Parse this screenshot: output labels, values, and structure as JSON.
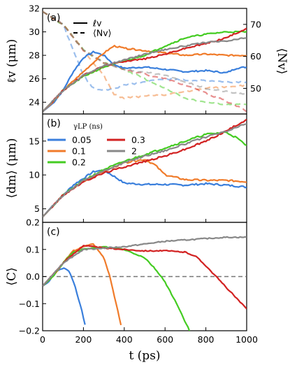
{
  "chart_data": [
    {
      "panel": "(a)",
      "type": "line",
      "xlim": [
        0,
        1000
      ],
      "ylim": [
        23,
        32
      ],
      "y2lim": [
        42,
        75
      ],
      "yticks": [
        24,
        26,
        28,
        30,
        32
      ],
      "y2ticks": [
        50,
        60,
        70
      ],
      "ylabel": "ℓv (μm)",
      "y2label": "⟨Nv⟩",
      "legend": {
        "position": "top-left",
        "entries": [
          {
            "label": "ℓv",
            "style": "solid"
          },
          {
            "label": "⟨Nv⟩",
            "style": "dashed"
          }
        ]
      },
      "series": [
        {
          "gamma": "0.05",
          "color": "#3a7fdc",
          "x": [
            0,
            50,
            100,
            150,
            200,
            250,
            300,
            350,
            400,
            500,
            600,
            700,
            800,
            900,
            950,
            1000
          ],
          "y": [
            23.2,
            23.9,
            25.0,
            26.6,
            27.8,
            28.3,
            28.0,
            27.2,
            26.9,
            27.0,
            26.8,
            26.6,
            26.7,
            26.5,
            26.9,
            27.0
          ],
          "n_x": [
            0,
            100,
            200,
            250,
            300,
            350,
            400,
            500,
            600,
            700,
            800,
            900,
            1000
          ],
          "n": [
            74,
            70,
            54,
            50,
            49.5,
            50,
            51,
            52,
            53,
            52.5,
            52.5,
            52,
            52
          ]
        },
        {
          "gamma": "0.1",
          "color": "#f07b2a",
          "x": [
            0,
            50,
            100,
            150,
            200,
            250,
            300,
            350,
            400,
            500,
            600,
            700,
            800,
            900,
            1000
          ],
          "y": [
            23.2,
            24.0,
            25.0,
            25.8,
            26.6,
            27.4,
            28.2,
            28.8,
            28.6,
            28.4,
            28.2,
            28.0,
            28.1,
            28.0,
            28.0
          ],
          "n_x": [
            0,
            100,
            200,
            300,
            350,
            400,
            500,
            600,
            700,
            800,
            900,
            1000
          ],
          "n": [
            74,
            70,
            62,
            54,
            48,
            47,
            47.5,
            48,
            49,
            50,
            50.5,
            51
          ]
        },
        {
          "gamma": "0.2",
          "color": "#44cc22",
          "x": [
            0,
            100,
            200,
            300,
            400,
            500,
            600,
            700,
            800,
            900,
            1000
          ],
          "y": [
            23.2,
            25.0,
            26.2,
            27.0,
            27.5,
            28.0,
            28.8,
            29.5,
            29.8,
            30.0,
            30.0
          ],
          "n_x": [
            0,
            100,
            200,
            300,
            400,
            500,
            600,
            700,
            800,
            900,
            1000
          ],
          "n": [
            74,
            70,
            62,
            58,
            56,
            53,
            50,
            47,
            45.5,
            45,
            45
          ]
        },
        {
          "gamma": "0.3",
          "color": "#d22222",
          "x": [
            0,
            100,
            200,
            300,
            400,
            500,
            600,
            700,
            800,
            900,
            1000
          ],
          "y": [
            23.2,
            25.0,
            26.3,
            27.1,
            27.5,
            27.7,
            28.1,
            28.6,
            29.0,
            29.5,
            30.3
          ],
          "n_x": [
            0,
            100,
            200,
            300,
            400,
            500,
            600,
            700,
            800,
            900,
            1000
          ],
          "n": [
            74,
            70,
            62,
            58,
            56,
            54.5,
            53,
            51,
            48.5,
            46,
            43
          ]
        },
        {
          "gamma": "2",
          "color": "#888888",
          "x": [
            0,
            100,
            200,
            300,
            400,
            500,
            600,
            700,
            800,
            900,
            1000
          ],
          "y": [
            23.2,
            25.0,
            26.3,
            27.1,
            27.6,
            28.1,
            28.5,
            28.8,
            29.1,
            29.2,
            29.5
          ],
          "n_x": [
            0,
            100,
            200,
            300,
            400,
            500,
            600,
            700,
            800,
            900,
            1000
          ],
          "n": [
            74,
            70,
            62,
            58,
            56,
            55,
            54,
            52,
            50,
            49,
            48
          ]
        }
      ]
    },
    {
      "panel": "(b)",
      "type": "line",
      "xlim": [
        0,
        1000
      ],
      "ylim": [
        3,
        19
      ],
      "yticks": [
        5,
        10,
        15
      ],
      "ylabel": "⟨dm⟩ (μm)",
      "legend": {
        "title": "γLP (ns)",
        "position": "top-left",
        "entries": [
          "0.05",
          "0.1",
          "0.2",
          "0.3",
          "2"
        ]
      },
      "series": [
        {
          "gamma": "0.05",
          "color": "#3a7fdc",
          "x": [
            0,
            50,
            100,
            150,
            200,
            250,
            300,
            350,
            400,
            500,
            600,
            700,
            800,
            900,
            1000
          ],
          "y": [
            3.8,
            5.5,
            7.0,
            8.5,
            9.5,
            10.5,
            10.7,
            9.8,
            8.8,
            8.6,
            8.6,
            8.5,
            8.7,
            8.5,
            8.2
          ],
          "seed": 1
        },
        {
          "gamma": "0.1",
          "color": "#f07b2a",
          "x": [
            0,
            100,
            200,
            300,
            400,
            500,
            550,
            600,
            700,
            800,
            900,
            1000
          ],
          "y": [
            3.8,
            7.0,
            9.0,
            10.5,
            11.8,
            12.3,
            11.5,
            10.0,
            9.3,
            9.2,
            9.2,
            9.0
          ],
          "seed": 2
        },
        {
          "gamma": "0.2",
          "color": "#44cc22",
          "x": [
            0,
            100,
            200,
            300,
            400,
            500,
            600,
            700,
            800,
            900,
            950,
            1000
          ],
          "y": [
            3.8,
            7.0,
            9.2,
            10.8,
            12.0,
            13.0,
            14.0,
            15.0,
            16.0,
            16.3,
            15.5,
            14.3
          ],
          "seed": 3
        },
        {
          "gamma": "0.3",
          "color": "#d22222",
          "x": [
            0,
            100,
            200,
            300,
            400,
            500,
            600,
            700,
            800,
            900,
            1000
          ],
          "y": [
            3.8,
            7.0,
            9.0,
            10.3,
            11.2,
            12.0,
            12.8,
            13.8,
            15.0,
            16.5,
            18.2
          ],
          "seed": 4
        },
        {
          "gamma": "2",
          "color": "#888888",
          "x": [
            0,
            100,
            200,
            300,
            400,
            500,
            600,
            700,
            800,
            900,
            1000
          ],
          "y": [
            3.8,
            7.0,
            9.2,
            10.6,
            11.8,
            12.8,
            13.6,
            14.6,
            15.6,
            16.4,
            17.6
          ],
          "seed": 5
        }
      ]
    },
    {
      "panel": "(c)",
      "type": "line",
      "xlim": [
        0,
        1000
      ],
      "ylim": [
        -0.2,
        0.2
      ],
      "yticks": [
        -0.2,
        -0.1,
        0.0,
        0.1,
        0.2
      ],
      "ytick_labels": [
        "−0.2",
        "−0.1",
        "0.0",
        "0.1",
        "0.2"
      ],
      "ylabel": "⟨C⟩",
      "xlabel": "t (ps)",
      "xticks": [
        0,
        200,
        400,
        600,
        800,
        1000
      ],
      "reference_line": {
        "y": 0.0,
        "style": "dashed",
        "color": "#777777"
      },
      "series": [
        {
          "gamma": "0.05",
          "color": "#3a7fdc",
          "x": [
            0,
            30,
            60,
            100,
            130,
            160,
            190,
            215
          ],
          "y": [
            -0.035,
            -0.02,
            0.015,
            0.032,
            0.02,
            -0.04,
            -0.12,
            -0.2
          ],
          "seed": 6
        },
        {
          "gamma": "0.1",
          "color": "#f07b2a",
          "x": [
            0,
            50,
            100,
            150,
            200,
            250,
            300,
            330,
            360,
            390
          ],
          "y": [
            -0.035,
            0.0,
            0.05,
            0.095,
            0.11,
            0.12,
            0.07,
            0.0,
            -0.1,
            -0.2
          ],
          "seed": 7
        },
        {
          "gamma": "0.2",
          "color": "#44cc22",
          "x": [
            0,
            50,
            100,
            150,
            200,
            300,
            400,
            500,
            550,
            600,
            650,
            720
          ],
          "y": [
            -0.035,
            0.0,
            0.05,
            0.09,
            0.1,
            0.11,
            0.1,
            0.07,
            0.03,
            -0.02,
            -0.09,
            -0.2
          ],
          "seed": 8
        },
        {
          "gamma": "0.3",
          "color": "#d22222",
          "x": [
            0,
            100,
            200,
            300,
            400,
            500,
            600,
            700,
            750,
            800,
            850,
            900,
            1000
          ],
          "y": [
            -0.035,
            0.05,
            0.115,
            0.105,
            0.1,
            0.095,
            0.095,
            0.09,
            0.075,
            0.04,
            0.0,
            -0.04,
            -0.12
          ],
          "seed": 9
        },
        {
          "gamma": "2",
          "color": "#888888",
          "x": [
            0,
            100,
            200,
            300,
            400,
            500,
            600,
            700,
            800,
            900,
            1000
          ],
          "y": [
            -0.035,
            0.05,
            0.1,
            0.105,
            0.11,
            0.12,
            0.13,
            0.135,
            0.14,
            0.145,
            0.145
          ],
          "seed": 10
        }
      ]
    }
  ]
}
